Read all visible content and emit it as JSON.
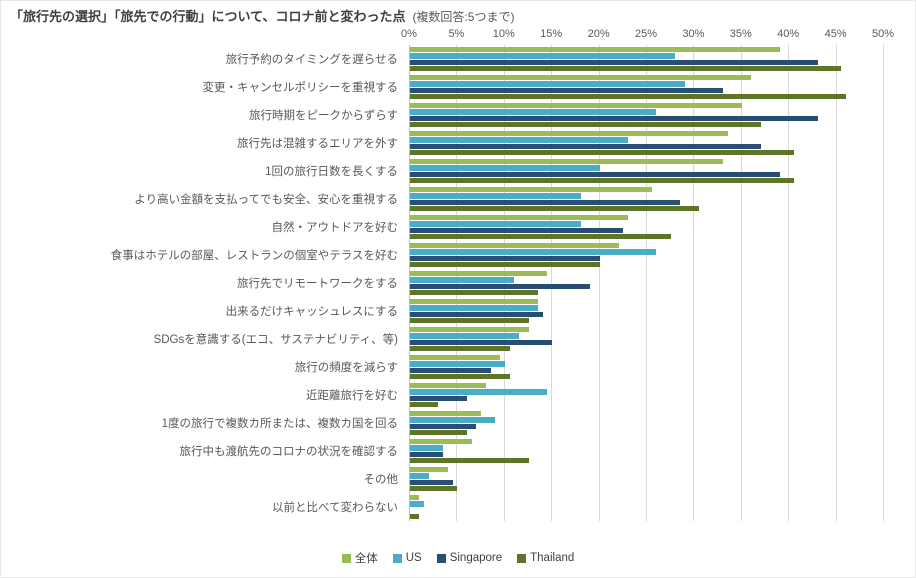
{
  "title": "「旅行先の選択」「旅先での行動」について、コロナ前と変わった点",
  "title_note": "(複数回答:5つまで)",
  "chart_data": {
    "type": "bar",
    "orientation": "horizontal",
    "title": "「旅行先の選択」「旅先での行動」について、コロナ前と変わった点 (複数回答:5つまで)",
    "x_axis": {
      "position": "top",
      "min": 0,
      "max": 50,
      "unit": "%",
      "ticks": [
        "0%",
        "5%",
        "10%",
        "15%",
        "20%",
        "25%",
        "30%",
        "35%",
        "40%",
        "45%",
        "50%"
      ]
    },
    "grid": true,
    "legend_position": "bottom",
    "categories": [
      "旅行予約のタイミングを遅らせる",
      "変更・キャンセルポリシーを重視する",
      "旅行時期をピークからずらす",
      "旅行先は混雑するエリアを外す",
      "1回の旅行日数を長くする",
      "より高い金額を支払ってでも安全、安心を重視する",
      "自然・アウトドアを好む",
      "食事はホテルの部屋、レストランの個室やテラスを好む",
      "旅行先でリモートワークをする",
      "出来るだけキャッシュレスにする",
      "SDGsを意識する(エコ、サステナビリティ、等)",
      "旅行の頻度を減らす",
      "近距離旅行を好む",
      "1度の旅行で複数カ所または、複数カ国を回る",
      "旅行中も渡航先のコロナの状況を確認する",
      "その他",
      "以前と比べて変わらない"
    ],
    "series": [
      {
        "name": "全体",
        "color": "#9BBB59",
        "values": [
          39,
          36,
          35,
          33.5,
          33,
          25.5,
          23,
          22,
          14.5,
          13.5,
          12.5,
          9.5,
          8,
          7.5,
          6.5,
          4,
          1
        ]
      },
      {
        "name": "US",
        "color": "#4BACC6",
        "values": [
          28,
          29,
          26,
          23,
          20,
          18,
          18,
          26,
          11,
          13.5,
          11.5,
          10,
          14.5,
          9,
          3.5,
          2,
          1.5
        ]
      },
      {
        "name": "Singapore",
        "color": "#2A4D73",
        "values": [
          43,
          33,
          43,
          37,
          39,
          28.5,
          22.5,
          20,
          19,
          14,
          15,
          8.5,
          6,
          7,
          3.5,
          4.5,
          0
        ]
      },
      {
        "name": "Thailand",
        "color": "#5E7528",
        "values": [
          45.5,
          46,
          37,
          40.5,
          40.5,
          30.5,
          27.5,
          20,
          13.5,
          12.5,
          10.5,
          10.5,
          3,
          6,
          12.5,
          5,
          1
        ]
      }
    ]
  }
}
